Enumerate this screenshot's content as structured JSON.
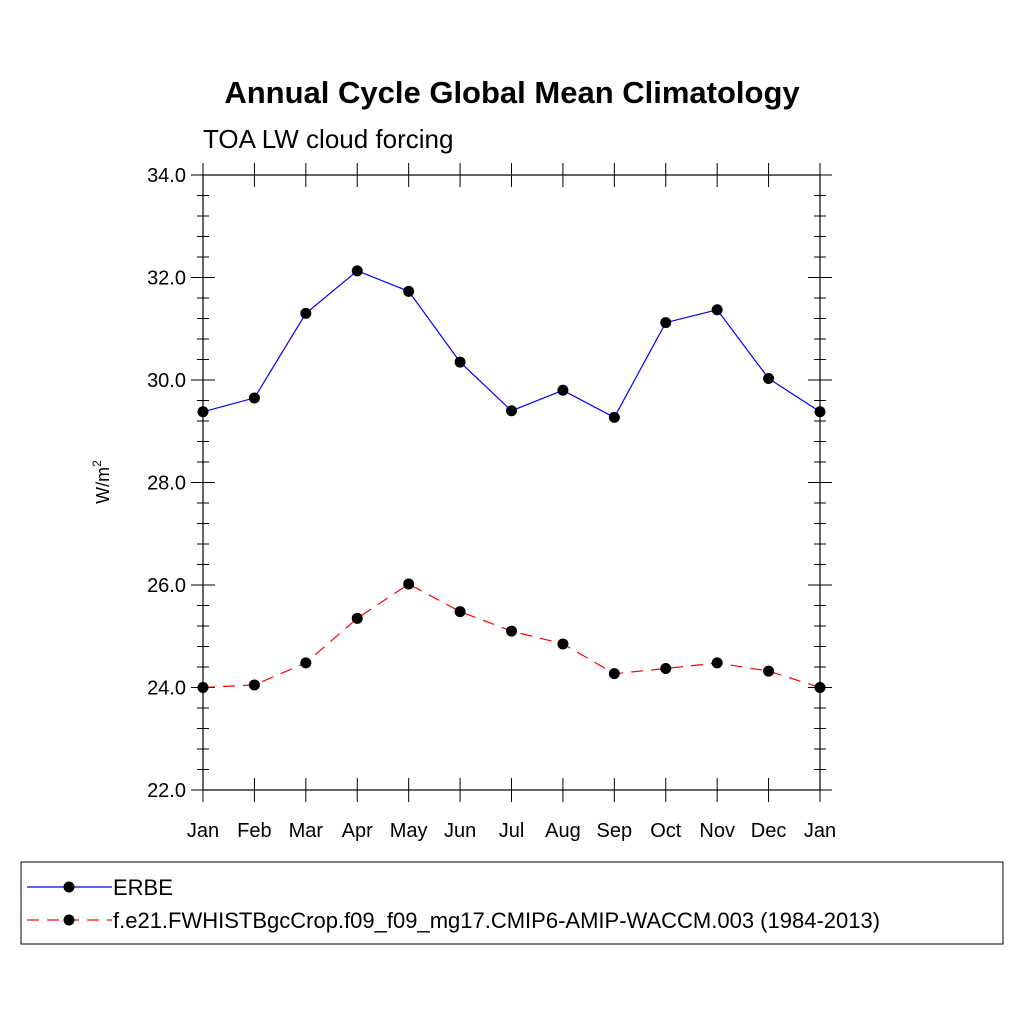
{
  "chart_data": {
    "type": "line",
    "title": "Annual Cycle Global Mean Climatology",
    "subtitle": "TOA LW cloud forcing",
    "ylabel": "W/m",
    "ylabel_superscript": "2",
    "xlabel": "",
    "categories": [
      "Jan",
      "Feb",
      "Mar",
      "Apr",
      "May",
      "Jun",
      "Jul",
      "Aug",
      "Sep",
      "Oct",
      "Nov",
      "Dec",
      "Jan"
    ],
    "ylim": [
      22.0,
      34.0
    ],
    "yticks": [
      "22.0",
      "24.0",
      "26.0",
      "28.0",
      "30.0",
      "32.0",
      "34.0"
    ],
    "grid": false,
    "legend_position": "bottom",
    "series": [
      {
        "name": "ERBE",
        "color": "#0000ff",
        "dash": "solid",
        "values": [
          29.38,
          29.65,
          31.3,
          32.13,
          31.73,
          30.35,
          29.4,
          29.8,
          29.27,
          31.12,
          31.37,
          30.03,
          29.38
        ]
      },
      {
        "name": "f.e21.FWHISTBgcCrop.f09_f09_mg17.CMIP6-AMIP-WACCM.003 (1984-2013)",
        "color": "#ff0000",
        "dash": "dashed",
        "values": [
          24.0,
          24.05,
          24.48,
          25.35,
          26.02,
          25.48,
          25.1,
          24.85,
          24.27,
          24.37,
          24.48,
          24.32,
          24.0
        ]
      }
    ]
  }
}
